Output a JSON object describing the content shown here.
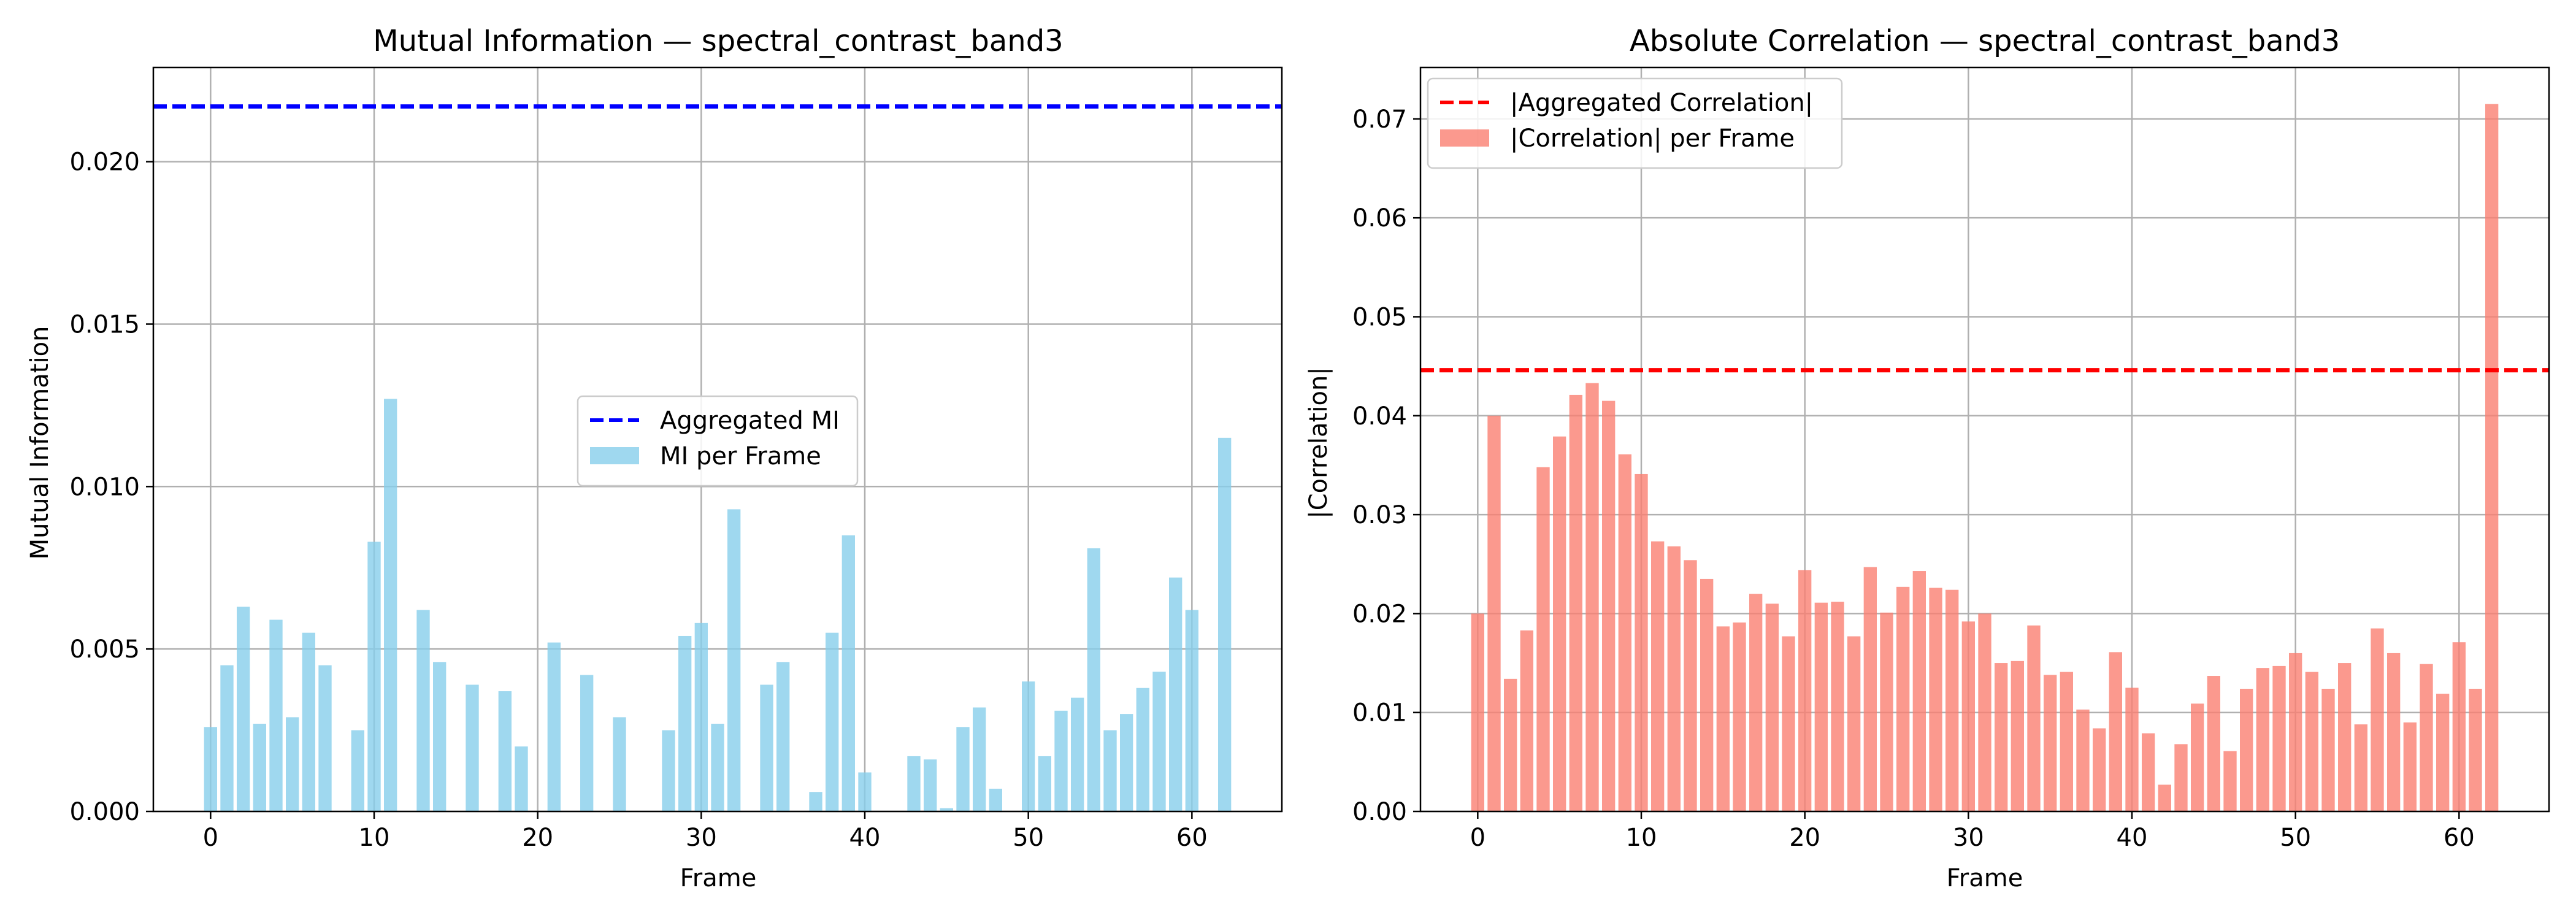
{
  "chart_data": [
    {
      "type": "bar",
      "title": "Mutual Information — spectral_contrast_band3",
      "xlabel": "Frame",
      "ylabel": "Mutual Information",
      "xlim": [
        -3.5,
        65.5
      ],
      "ylim": [
        0,
        0.0229
      ],
      "xticks": [
        0,
        10,
        20,
        30,
        40,
        50,
        60
      ],
      "yticks": [
        0.0,
        0.005,
        0.01,
        0.015,
        0.02
      ],
      "ytick_labels": [
        "0.000",
        "0.005",
        "0.010",
        "0.015",
        "0.020"
      ],
      "grid": true,
      "legend_position": "center-right",
      "series": [
        {
          "name": "MI per Frame",
          "kind": "bar",
          "color": "#87ceeb",
          "x": [
            0,
            1,
            2,
            3,
            4,
            5,
            6,
            7,
            8,
            9,
            10,
            11,
            12,
            13,
            14,
            15,
            16,
            17,
            18,
            19,
            20,
            21,
            22,
            23,
            24,
            25,
            26,
            27,
            28,
            29,
            30,
            31,
            32,
            33,
            34,
            35,
            36,
            37,
            38,
            39,
            40,
            41,
            42,
            43,
            44,
            45,
            46,
            47,
            48,
            49,
            50,
            51,
            52,
            53,
            54,
            55,
            56,
            57,
            58,
            59,
            60,
            61,
            62
          ],
          "values": [
            0.0026,
            0.0045,
            0.0063,
            0.0027,
            0.0059,
            0.0029,
            0.0055,
            0.0045,
            0,
            0.0025,
            0.0083,
            0.0127,
            0,
            0.0062,
            0.0046,
            0,
            0.0039,
            0,
            0.0037,
            0.002,
            0,
            0.0052,
            0,
            0.0042,
            0,
            0.0029,
            0,
            0,
            0.0025,
            0.0054,
            0.0058,
            0.0027,
            0.0093,
            0,
            0.0039,
            0.0046,
            0,
            0.0006,
            0.0055,
            0.0085,
            0.0012,
            0,
            0,
            0.0017,
            0.0016,
            0.0001,
            0.0026,
            0.0032,
            0.0007,
            0,
            0.004,
            0.0017,
            0.0031,
            0.0035,
            0.0081,
            0.0025,
            0.003,
            0.0038,
            0.0043,
            0.0072,
            0.0062,
            0,
            0.0115
          ]
        },
        {
          "name": "Aggregated MI",
          "kind": "hline",
          "color": "#0000ff",
          "value": 0.0217
        }
      ]
    },
    {
      "type": "bar",
      "title": "Absolute Correlation — spectral_contrast_band3",
      "xlabel": "Frame",
      "ylabel": "|Correlation|",
      "xlim": [
        -3.5,
        65.5
      ],
      "ylim": [
        0,
        0.0752
      ],
      "xticks": [
        0,
        10,
        20,
        30,
        40,
        50,
        60
      ],
      "yticks": [
        0.0,
        0.01,
        0.02,
        0.03,
        0.04,
        0.05,
        0.06,
        0.07
      ],
      "ytick_labels": [
        "0.00",
        "0.01",
        "0.02",
        "0.03",
        "0.04",
        "0.05",
        "0.06",
        "0.07"
      ],
      "grid": true,
      "legend_position": "top-left",
      "series": [
        {
          "name": "|Correlation| per Frame",
          "kind": "bar",
          "color": "#fa8072",
          "x": [
            0,
            1,
            2,
            3,
            4,
            5,
            6,
            7,
            8,
            9,
            10,
            11,
            12,
            13,
            14,
            15,
            16,
            17,
            18,
            19,
            20,
            21,
            22,
            23,
            24,
            25,
            26,
            27,
            28,
            29,
            30,
            31,
            32,
            33,
            34,
            35,
            36,
            37,
            38,
            39,
            40,
            41,
            42,
            43,
            44,
            45,
            46,
            47,
            48,
            49,
            50,
            51,
            52,
            53,
            54,
            55,
            56,
            57,
            58,
            59,
            60,
            61,
            62
          ],
          "values": [
            0.02,
            0.04,
            0.0134,
            0.0183,
            0.0348,
            0.0379,
            0.0421,
            0.0433,
            0.0415,
            0.0361,
            0.0341,
            0.0273,
            0.0268,
            0.0254,
            0.0235,
            0.0187,
            0.0191,
            0.022,
            0.021,
            0.0177,
            0.0244,
            0.0211,
            0.0212,
            0.0177,
            0.0247,
            0.0201,
            0.0227,
            0.0243,
            0.0226,
            0.0224,
            0.0192,
            0.02,
            0.015,
            0.0152,
            0.0188,
            0.0138,
            0.0141,
            0.0103,
            0.0084,
            0.0161,
            0.0125,
            0.0079,
            0.0027,
            0.0068,
            0.0109,
            0.0137,
            0.0061,
            0.0124,
            0.0145,
            0.0147,
            0.016,
            0.0141,
            0.0124,
            0.015,
            0.0088,
            0.0185,
            0.016,
            0.009,
            0.0149,
            0.0119,
            0.0171,
            0.0124,
            0.0715
          ]
        },
        {
          "name": "|Aggregated Correlation|",
          "kind": "hline",
          "color": "#ff0000",
          "value": 0.0446
        }
      ]
    }
  ]
}
